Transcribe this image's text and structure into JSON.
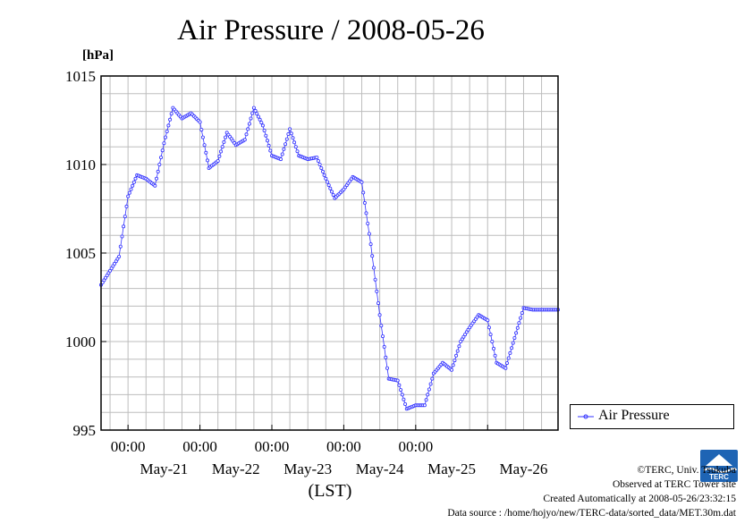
{
  "title": "Air Pressure / 2008-05-26",
  "colors": {
    "series": "#3030ff",
    "grid": "#bdbdbd",
    "axis": "#000000",
    "logo": "#1e64b4"
  },
  "chart_data": {
    "type": "line",
    "title": "Air Pressure / 2008-05-26",
    "ylabel": "[hPa]",
    "xlabel": "(LST)",
    "ylim": [
      995,
      1015
    ],
    "yticks": [
      "1015",
      "1010",
      "1005",
      "1000",
      "995"
    ],
    "xlim": [
      "2008-05-20 15:00",
      "2008-05-26 23:30"
    ],
    "x_time_labels": [
      "00:00",
      "00:00",
      "00:00",
      "00:00",
      "00:00"
    ],
    "x_date_labels": [
      "May-21",
      "May-22",
      "May-23",
      "May-24",
      "May-25",
      "May-26"
    ],
    "grid": true,
    "legend": "right",
    "series": [
      {
        "name": "Air Pressure",
        "marker": "circle",
        "x": [
          "05-20 15:00",
          "05-20 21:00",
          "05-21 00:00",
          "05-21 03:00",
          "05-21 06:00",
          "05-21 09:00",
          "05-21 12:00",
          "05-21 15:00",
          "05-21 18:00",
          "05-21 21:00",
          "05-22 00:00",
          "05-22 03:00",
          "05-22 06:00",
          "05-22 09:00",
          "05-22 12:00",
          "05-22 15:00",
          "05-22 18:00",
          "05-22 21:00",
          "05-23 00:00",
          "05-23 03:00",
          "05-23 06:00",
          "05-23 09:00",
          "05-23 12:00",
          "05-23 15:00",
          "05-23 18:00",
          "05-23 21:00",
          "05-24 00:00",
          "05-24 03:00",
          "05-24 06:00",
          "05-24 09:00",
          "05-24 12:00",
          "05-24 15:00",
          "05-24 18:00",
          "05-24 21:00",
          "05-25 00:00",
          "05-25 03:00",
          "05-25 06:00",
          "05-25 09:00",
          "05-25 12:00",
          "05-25 15:00",
          "05-25 18:00",
          "05-25 21:00",
          "05-26 00:00",
          "05-26 03:00",
          "05-26 06:00",
          "05-26 09:00",
          "05-26 12:00",
          "05-26 15:00",
          "05-26 18:00",
          "05-26 21:00",
          "05-26 23:30"
        ],
        "values": [
          1003.2,
          1004.8,
          1008.2,
          1009.4,
          1009.2,
          1008.8,
          1011.2,
          1013.2,
          1012.6,
          1012.9,
          1012.4,
          1009.8,
          1010.2,
          1011.8,
          1011.1,
          1011.4,
          1013.2,
          1012.2,
          1010.5,
          1010.3,
          1012.0,
          1010.5,
          1010.3,
          1010.4,
          1009.2,
          1008.1,
          1008.6,
          1009.3,
          1009.0,
          1005.5,
          1001.5,
          997.9,
          997.8,
          996.2,
          996.4,
          996.4,
          998.2,
          998.8,
          998.4,
          1000.0,
          1000.8,
          1001.5,
          1001.2,
          998.8,
          998.5,
          1000.2,
          1001.9,
          1001.8,
          1001.8,
          1001.8,
          1001.8
        ]
      }
    ]
  },
  "legend": {
    "label": "Air Pressure"
  },
  "logo": {
    "text": "TERC",
    "icon": "terc-logo"
  },
  "credits": {
    "copyright": "©TERC, Univ. Tsukuba",
    "observed": "Observed at TERC Tower site",
    "created": "Created Automatically at 2008-05-26/23:32:15",
    "source": "Data source : /home/hojyo/new/TERC-data/sorted_data/MET.30m.dat"
  }
}
